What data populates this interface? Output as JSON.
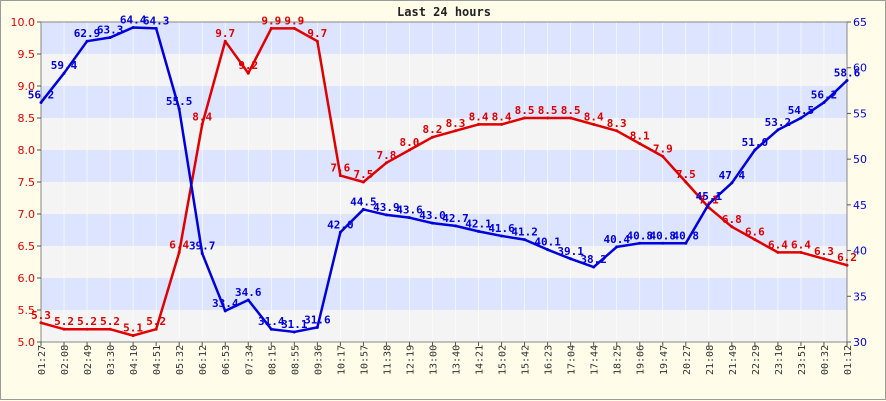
{
  "chart_data": {
    "type": "line",
    "title": "Last 24 hours",
    "x": [
      "01:27",
      "02:08",
      "02:49",
      "03:30",
      "04:10",
      "04:51",
      "05:32",
      "06:12",
      "06:53",
      "07:34",
      "08:15",
      "08:55",
      "09:36",
      "10:17",
      "10:57",
      "11:38",
      "12:19",
      "13:00",
      "13:40",
      "14:21",
      "15:02",
      "15:42",
      "16:23",
      "17:04",
      "17:44",
      "18:25",
      "19:06",
      "19:47",
      "20:27",
      "21:08",
      "21:49",
      "22:29",
      "23:10",
      "23:51",
      "00:32",
      "01:12"
    ],
    "series": [
      {
        "axis": "left",
        "color": "#e00000",
        "values": [
          5.3,
          5.2,
          5.2,
          5.2,
          5.1,
          5.2,
          6.4,
          8.4,
          9.7,
          9.2,
          9.9,
          9.9,
          9.7,
          7.6,
          7.5,
          7.8,
          8.0,
          8.2,
          8.3,
          8.4,
          8.4,
          8.5,
          8.5,
          8.5,
          8.4,
          8.3,
          8.1,
          7.9,
          7.5,
          7.1,
          6.8,
          6.6,
          6.4,
          6.4,
          6.3,
          6.2
        ],
        "labels": [
          "5.3",
          "5.2",
          "5.2",
          "5.2",
          "5.1",
          "5.2",
          "6.4",
          "8.4",
          "9.7",
          "9.2",
          "9.9",
          "9.9",
          "9.7",
          "7.6",
          "7.5",
          "7.8",
          "8.0",
          "8.2",
          "8.3",
          "8.4",
          "8.4",
          "8.5",
          "8.5",
          "8.5",
          "8.4",
          "8.3",
          "8.1",
          "7.9",
          "7.5",
          "7.1",
          "6.8",
          "6.6",
          "6.4",
          "6.4",
          "6.3",
          "6.2"
        ]
      },
      {
        "axis": "right",
        "color": "#0000dd",
        "values": [
          56.2,
          59.4,
          62.9,
          63.3,
          64.4,
          64.3,
          55.5,
          39.7,
          33.4,
          34.6,
          31.4,
          31.1,
          31.6,
          42.0,
          44.5,
          43.9,
          43.6,
          43.0,
          42.7,
          42.1,
          41.6,
          41.2,
          40.1,
          39.1,
          38.2,
          40.4,
          40.8,
          40.8,
          40.8,
          45.1,
          47.4,
          51.0,
          53.2,
          54.5,
          56.2,
          58.6
        ],
        "labels": [
          "56.2",
          "59.4",
          "62.9",
          "63.3",
          "64.4",
          "64.3",
          "55.5",
          "39.7",
          "33.4",
          "34.6",
          "31.4",
          "31.1",
          "31.6",
          "42.0",
          "44.5",
          "43.9",
          "43.6",
          "43.0",
          "42.7",
          "42.1",
          "41.6",
          "41.2",
          "40.1",
          "39.1",
          "38.2",
          "40.4",
          "40.8",
          "40.8",
          "40.8",
          "45.1",
          "47.4",
          "51.0",
          "53.2",
          "54.5",
          "56.2",
          "58.6"
        ]
      }
    ],
    "y_left": {
      "ylim": [
        5.0,
        10.0
      ],
      "ticks": [
        "5.0",
        "5.5",
        "6.0",
        "6.5",
        "7.0",
        "7.5",
        "8.0",
        "8.5",
        "9.0",
        "9.5",
        "10.0"
      ],
      "color": "#e00000"
    },
    "y_right": {
      "ylim": [
        30,
        65
      ],
      "ticks": [
        "30",
        "35",
        "40",
        "45",
        "50",
        "55",
        "60",
        "65"
      ],
      "color": "#0000dd"
    },
    "grid": true,
    "band_colors": [
      "#dde4ff",
      "#f4f4f4"
    ]
  }
}
